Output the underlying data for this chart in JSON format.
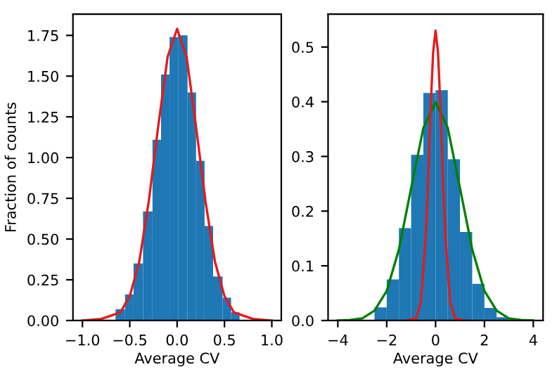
{
  "chart_data": [
    {
      "type": "histogram",
      "xlabel": "Average CV",
      "ylabel": "Fraction of counts",
      "xlim": [
        -1.1,
        1.1
      ],
      "ylim": [
        0,
        1.88
      ],
      "xticks": [
        {
          "value": -1,
          "label": "−1.0"
        },
        {
          "value": -0.5,
          "label": "−0.5"
        },
        {
          "value": 0,
          "label": "0.0"
        },
        {
          "value": 0.5,
          "label": "0.5"
        },
        {
          "value": 1,
          "label": "1.0"
        }
      ],
      "yticks": [
        {
          "value": 0,
          "label": "0.00"
        },
        {
          "value": 0.25,
          "label": "0.25"
        },
        {
          "value": 0.5,
          "label": "0.50"
        },
        {
          "value": 0.75,
          "label": "0.75"
        },
        {
          "value": 1,
          "label": "1.00"
        },
        {
          "value": 1.25,
          "label": "1.25"
        },
        {
          "value": 1.5,
          "label": "1.50"
        },
        {
          "value": 1.75,
          "label": "1.75"
        }
      ],
      "series": [
        {
          "color": "#1f77b4",
          "bins": [
            -0.65,
            -0.55,
            -0.46,
            -0.36,
            -0.26,
            -0.17,
            -0.08,
            0.01,
            0.11,
            0.2,
            0.29,
            0.38,
            0.48,
            0.57,
            0.66
          ],
          "values": [
            0.07,
            0.16,
            0.35,
            0.67,
            1.11,
            1.51,
            1.74,
            1.75,
            1.4,
            0.98,
            0.58,
            0.27,
            0.14,
            0.05
          ]
        },
        {
          "type": "line",
          "color": "#e41a1c",
          "x": [
            -1,
            -0.8,
            -0.6,
            -0.5,
            -0.4,
            -0.3,
            -0.2,
            -0.1,
            0,
            0.1,
            0.2,
            0.3,
            0.4,
            0.5,
            0.6,
            0.8,
            1
          ],
          "values": [
            0,
            0.01,
            0.05,
            0.15,
            0.36,
            0.73,
            1.19,
            1.62,
            1.79,
            1.62,
            1.19,
            0.73,
            0.36,
            0.15,
            0.05,
            0.01,
            0
          ]
        }
      ]
    },
    {
      "type": "histogram",
      "xlabel": "Average CV",
      "xlim": [
        -4.4,
        4.4
      ],
      "ylim": [
        0,
        0.56
      ],
      "xticks": [
        {
          "value": -4,
          "label": "−4"
        },
        {
          "value": -2,
          "label": "−2"
        },
        0,
        2,
        4
      ],
      "yticks": [
        {
          "value": 0,
          "label": "0.0"
        },
        0.1,
        0.2,
        0.3,
        0.4,
        0.5
      ],
      "series": [
        {
          "color": "#1f77b4",
          "bins": [
            -2.5,
            -2,
            -1.5,
            -1,
            -0.5,
            0,
            0.5,
            1,
            1.5,
            2,
            2.5,
            3
          ],
          "values": [
            0.024,
            0.075,
            0.169,
            0.303,
            0.416,
            0.421,
            0.295,
            0.162,
            0.067,
            0.023,
            0.006
          ]
        },
        {
          "type": "line",
          "color": "#008000",
          "x": [
            -4,
            -3.5,
            -3,
            -2.5,
            -2,
            -1.5,
            -1,
            -0.5,
            0,
            0.5,
            1,
            1.5,
            2,
            2.5,
            3,
            3.5,
            4
          ],
          "values": [
            0,
            0.001,
            0.004,
            0.018,
            0.054,
            0.13,
            0.242,
            0.352,
            0.399,
            0.352,
            0.242,
            0.13,
            0.054,
            0.018,
            0.004,
            0.001,
            0
          ]
        },
        {
          "type": "line",
          "color": "#e41a1c",
          "x": [
            -1.2,
            -0.8,
            -0.6,
            -0.4,
            -0.3,
            -0.2,
            -0.1,
            0,
            0.1,
            0.2,
            0.3,
            0.4,
            0.6,
            0.8,
            1.2
          ],
          "values": [
            0,
            0.004,
            0.033,
            0.155,
            0.26,
            0.39,
            0.49,
            0.53,
            0.49,
            0.39,
            0.26,
            0.155,
            0.033,
            0.004,
            0
          ]
        }
      ]
    }
  ]
}
